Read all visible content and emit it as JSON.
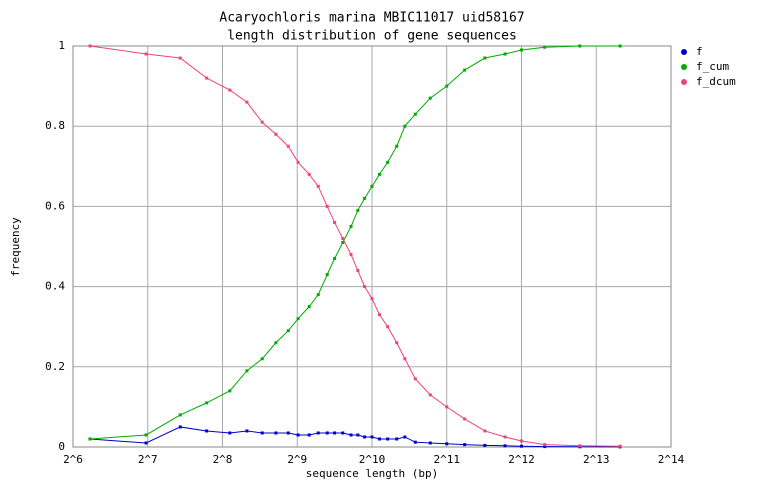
{
  "chart_data": {
    "type": "line",
    "title": "Acaryochloris marina MBIC11017 uid58167",
    "subtitle": "length distribution of gene sequences",
    "x_label": "sequence length (bp)",
    "y_label": "frequency",
    "xlog": true,
    "grid": true,
    "legend": "right",
    "xlim": [
      64,
      16384
    ],
    "xticks": [
      {
        "value": 64,
        "label": "2^6"
      },
      {
        "value": 128,
        "label": "2^7"
      },
      {
        "value": 256,
        "label": "2^8"
      },
      {
        "value": 512,
        "label": "2^9"
      },
      {
        "value": 1024,
        "label": "2^10"
      },
      {
        "value": 2048,
        "label": "2^11"
      },
      {
        "value": 4096,
        "label": "2^12"
      },
      {
        "value": 8192,
        "label": "2^13"
      },
      {
        "value": 16384,
        "label": "2^14"
      }
    ],
    "ylim": [
      0,
      1
    ],
    "yticks": [
      0,
      0.2,
      0.4,
      0.6,
      0.8,
      1
    ],
    "x": [
      75,
      126,
      173,
      221,
      274,
      321,
      370,
      420,
      471,
      516,
      572,
      622,
      676,
      724,
      781,
      843,
      898,
      956,
      1024,
      1098,
      1184,
      1288,
      1389,
      1530,
      1758,
      2048,
      2418,
      2916,
      3516,
      4096,
      5081,
      7032,
      10221
    ],
    "series": [
      {
        "name": "f",
        "color": "#0000cc",
        "values": [
          0.02,
          0.01,
          0.05,
          0.04,
          0.035,
          0.04,
          0.035,
          0.035,
          0.035,
          0.03,
          0.03,
          0.035,
          0.035,
          0.035,
          0.035,
          0.03,
          0.03,
          0.025,
          0.025,
          0.02,
          0.02,
          0.02,
          0.025,
          0.012,
          0.01,
          0.008,
          0.006,
          0.004,
          0.003,
          0.002,
          0.001,
          0.0005,
          0.0003
        ]
      },
      {
        "name": "f_cum",
        "color": "#00aa00",
        "values": [
          0.02,
          0.03,
          0.08,
          0.11,
          0.14,
          0.19,
          0.22,
          0.26,
          0.29,
          0.32,
          0.35,
          0.38,
          0.43,
          0.47,
          0.51,
          0.55,
          0.59,
          0.62,
          0.65,
          0.68,
          0.71,
          0.75,
          0.8,
          0.83,
          0.87,
          0.9,
          0.94,
          0.97,
          0.98,
          0.99,
          0.997,
          1.0,
          1.0
        ]
      },
      {
        "name": "f_dcum",
        "color": "#ee4477",
        "values": [
          1.0,
          0.98,
          0.97,
          0.92,
          0.89,
          0.86,
          0.81,
          0.78,
          0.75,
          0.71,
          0.68,
          0.65,
          0.6,
          0.56,
          0.52,
          0.48,
          0.44,
          0.4,
          0.37,
          0.33,
          0.3,
          0.26,
          0.22,
          0.17,
          0.13,
          0.1,
          0.07,
          0.04,
          0.025,
          0.015,
          0.006,
          0.003,
          0.002
        ]
      }
    ]
  }
}
